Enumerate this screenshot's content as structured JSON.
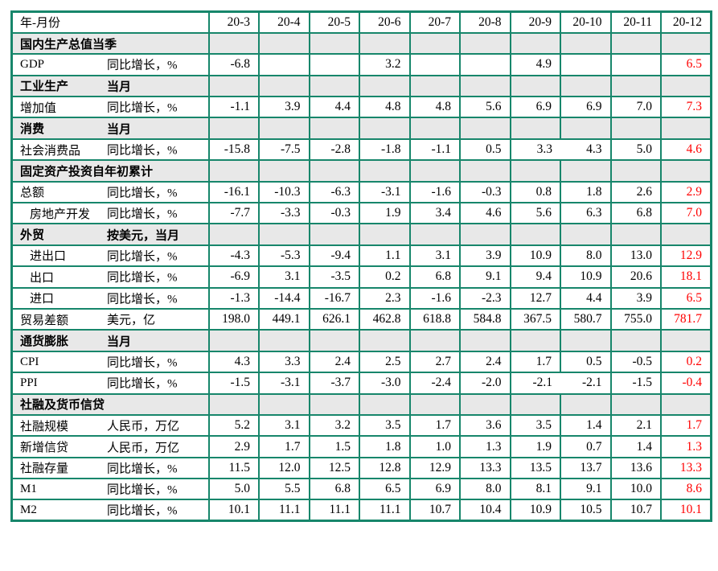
{
  "colors": {
    "border_green": "#17866b",
    "section_row_bg": "#e8e8e8",
    "latest_column_red": "#ff0000",
    "text_black": "#000000"
  },
  "table": {
    "header": {
      "label": "年-月份",
      "months": [
        "20-3",
        "20-4",
        "20-5",
        "20-6",
        "20-7",
        "20-8",
        "20-9",
        "20-10",
        "20-11",
        "20-12"
      ]
    },
    "rows": [
      {
        "type": "section",
        "label": "国内生产总值当季",
        "sublabel": ""
      },
      {
        "type": "data",
        "label": "GDP",
        "unit": "同比增长，%",
        "indent": false,
        "values": [
          "-6.8",
          "",
          "",
          "3.2",
          "",
          "",
          "4.9",
          "",
          "",
          "6.5"
        ]
      },
      {
        "type": "section",
        "label": "工业生产",
        "sublabel": "当月"
      },
      {
        "type": "data",
        "label": "增加值",
        "unit": "同比增长，%",
        "indent": false,
        "values": [
          "-1.1",
          "3.9",
          "4.4",
          "4.8",
          "4.8",
          "5.6",
          "6.9",
          "6.9",
          "7.0",
          "7.3"
        ]
      },
      {
        "type": "section",
        "label": "消费",
        "sublabel": "当月"
      },
      {
        "type": "data",
        "label": "社会消费品",
        "unit": "同比增长，%",
        "indent": false,
        "no_border_after": 6,
        "values": [
          "-15.8",
          "-7.5",
          "-2.8",
          "-1.8",
          "-1.1",
          "0.5",
          "3.3",
          "4.3",
          "5.0",
          "4.6"
        ]
      },
      {
        "type": "section",
        "label": "固定资产投资自年初累计",
        "sublabel": ""
      },
      {
        "type": "data",
        "label": "总额",
        "unit": "同比增长，%",
        "indent": false,
        "values": [
          "-16.1",
          "-10.3",
          "-6.3",
          "-3.1",
          "-1.6",
          "-0.3",
          "0.8",
          "1.8",
          "2.6",
          "2.9"
        ]
      },
      {
        "type": "data",
        "label": "房地产开发",
        "unit": "同比增长，%",
        "indent": true,
        "values": [
          "-7.7",
          "-3.3",
          "-0.3",
          "1.9",
          "3.4",
          "4.6",
          "5.6",
          "6.3",
          "6.8",
          "7.0"
        ]
      },
      {
        "type": "section",
        "label": "外贸",
        "sublabel": "按美元，当月"
      },
      {
        "type": "data",
        "label": "进出口",
        "unit": "同比增长，%",
        "indent": true,
        "values": [
          "-4.3",
          "-5.3",
          "-9.4",
          "1.1",
          "3.1",
          "3.9",
          "10.9",
          "8.0",
          "13.0",
          "12.9"
        ]
      },
      {
        "type": "data",
        "label": "出口",
        "unit": "同比增长，%",
        "indent": true,
        "values": [
          "-6.9",
          "3.1",
          "-3.5",
          "0.2",
          "6.8",
          "9.1",
          "9.4",
          "10.9",
          "20.6",
          "18.1"
        ]
      },
      {
        "type": "data",
        "label": "进口",
        "unit": "同比增长，%",
        "indent": true,
        "values": [
          "-1.3",
          "-14.4",
          "-16.7",
          "2.3",
          "-1.6",
          "-2.3",
          "12.7",
          "4.4",
          "3.9",
          "6.5"
        ]
      },
      {
        "type": "data",
        "label": "贸易差额",
        "unit": "美元，亿",
        "indent": false,
        "values": [
          "198.0",
          "449.1",
          "626.1",
          "462.8",
          "618.8",
          "584.8",
          "367.5",
          "580.7",
          "755.0",
          "781.7"
        ]
      },
      {
        "type": "section",
        "label": "通货膨胀",
        "sublabel": "当月"
      },
      {
        "type": "data",
        "label": "CPI",
        "unit": "同比增长，%",
        "indent": false,
        "values": [
          "4.3",
          "3.3",
          "2.4",
          "2.5",
          "2.7",
          "2.4",
          "1.7",
          "0.5",
          "-0.5",
          "0.2"
        ]
      },
      {
        "type": "data",
        "label": "PPI",
        "unit": "同比增长，%",
        "indent": false,
        "no_border_after": 6,
        "values": [
          "-1.5",
          "-3.1",
          "-3.7",
          "-3.0",
          "-2.4",
          "-2.0",
          "-2.1",
          "-2.1",
          "-1.5",
          "-0.4"
        ]
      },
      {
        "type": "section",
        "label": "社融及货币信贷",
        "sublabel": ""
      },
      {
        "type": "data",
        "label": "社融规模",
        "unit": "人民币，万亿",
        "indent": false,
        "values": [
          "5.2",
          "3.1",
          "3.2",
          "3.5",
          "1.7",
          "3.6",
          "3.5",
          "1.4",
          "2.1",
          "1.7"
        ]
      },
      {
        "type": "data",
        "label": "新增信贷",
        "unit": "人民币，万亿",
        "indent": false,
        "values": [
          "2.9",
          "1.7",
          "1.5",
          "1.8",
          "1.0",
          "1.3",
          "1.9",
          "0.7",
          "1.4",
          "1.3"
        ]
      },
      {
        "type": "data",
        "label": "社融存量",
        "unit": "同比增长，%",
        "indent": false,
        "values": [
          "11.5",
          "12.0",
          "12.5",
          "12.8",
          "12.9",
          "13.3",
          "13.5",
          "13.7",
          "13.6",
          "13.3"
        ]
      },
      {
        "type": "data",
        "label": "M1",
        "unit": "同比增长，%",
        "indent": false,
        "values": [
          "5.0",
          "5.5",
          "6.8",
          "6.5",
          "6.9",
          "8.0",
          "8.1",
          "9.1",
          "10.0",
          "8.6"
        ]
      },
      {
        "type": "data",
        "label": "M2",
        "unit": "同比增长，%",
        "indent": false,
        "values": [
          "10.1",
          "11.1",
          "11.1",
          "11.1",
          "10.7",
          "10.4",
          "10.9",
          "10.5",
          "10.7",
          "10.1"
        ]
      }
    ]
  }
}
